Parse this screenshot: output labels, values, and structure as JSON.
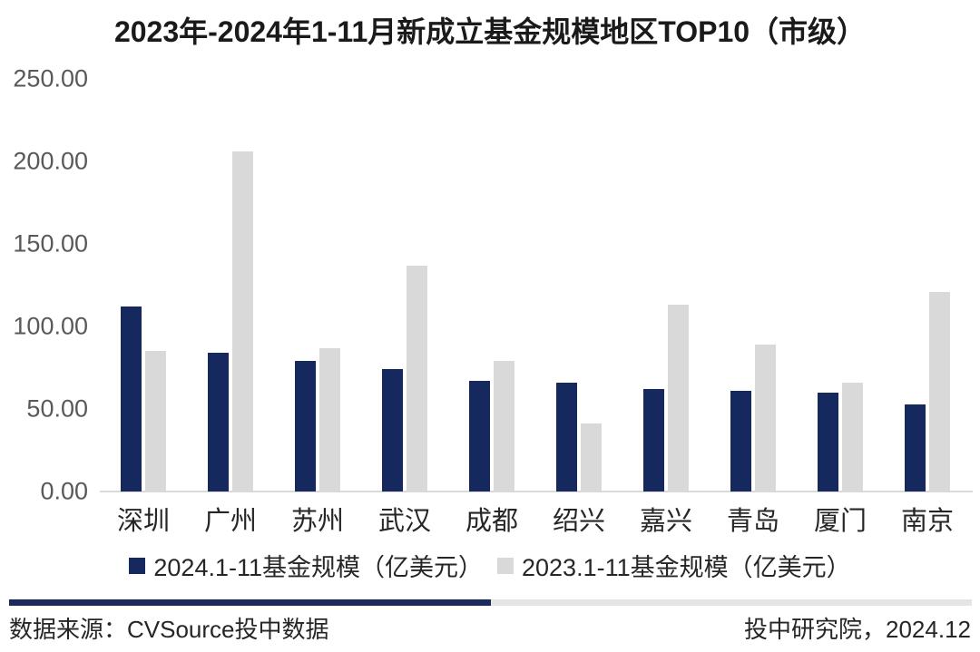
{
  "title": "2023年-2024年1-11月新成立基金规模地区TOP10（市级）",
  "colors": {
    "navy": "#16295f",
    "light_gray": "#d9d9d9",
    "axis_line": "#d9d9d9",
    "tick_text": "#595959",
    "label_text": "#262626",
    "divider_navy": "#1b2a5a",
    "divider_gray": "#e5e5e5"
  },
  "footer": {
    "source": "数据来源：CVSource投中数据",
    "credit": "投中研究院，2024.12"
  },
  "chart_data": {
    "type": "bar",
    "title": "2023年-2024年1-11月新成立基金规模地区TOP10（市级）",
    "categories": [
      "深圳",
      "广州",
      "苏州",
      "武汉",
      "成都",
      "绍兴",
      "嘉兴",
      "青岛",
      "厦门",
      "南京"
    ],
    "series": [
      {
        "name": "2024.1-11基金规模（亿美元）",
        "color_key": "navy",
        "values": [
          112,
          84,
          79,
          74,
          67,
          66,
          62,
          61,
          60,
          53
        ]
      },
      {
        "name": "2023.1-11基金规模（亿美元）",
        "color_key": "light_gray",
        "values": [
          85,
          206,
          87,
          137,
          79,
          41,
          113,
          89,
          66,
          121
        ]
      }
    ],
    "xlabel": "",
    "ylabel": "",
    "ylim": [
      0,
      250
    ],
    "ytick_step": 50,
    "ytick_labels": [
      "250.00",
      "200.00",
      "150.00",
      "100.00",
      "50.00",
      "0.00"
    ],
    "grid": false,
    "legend_position": "bottom"
  }
}
